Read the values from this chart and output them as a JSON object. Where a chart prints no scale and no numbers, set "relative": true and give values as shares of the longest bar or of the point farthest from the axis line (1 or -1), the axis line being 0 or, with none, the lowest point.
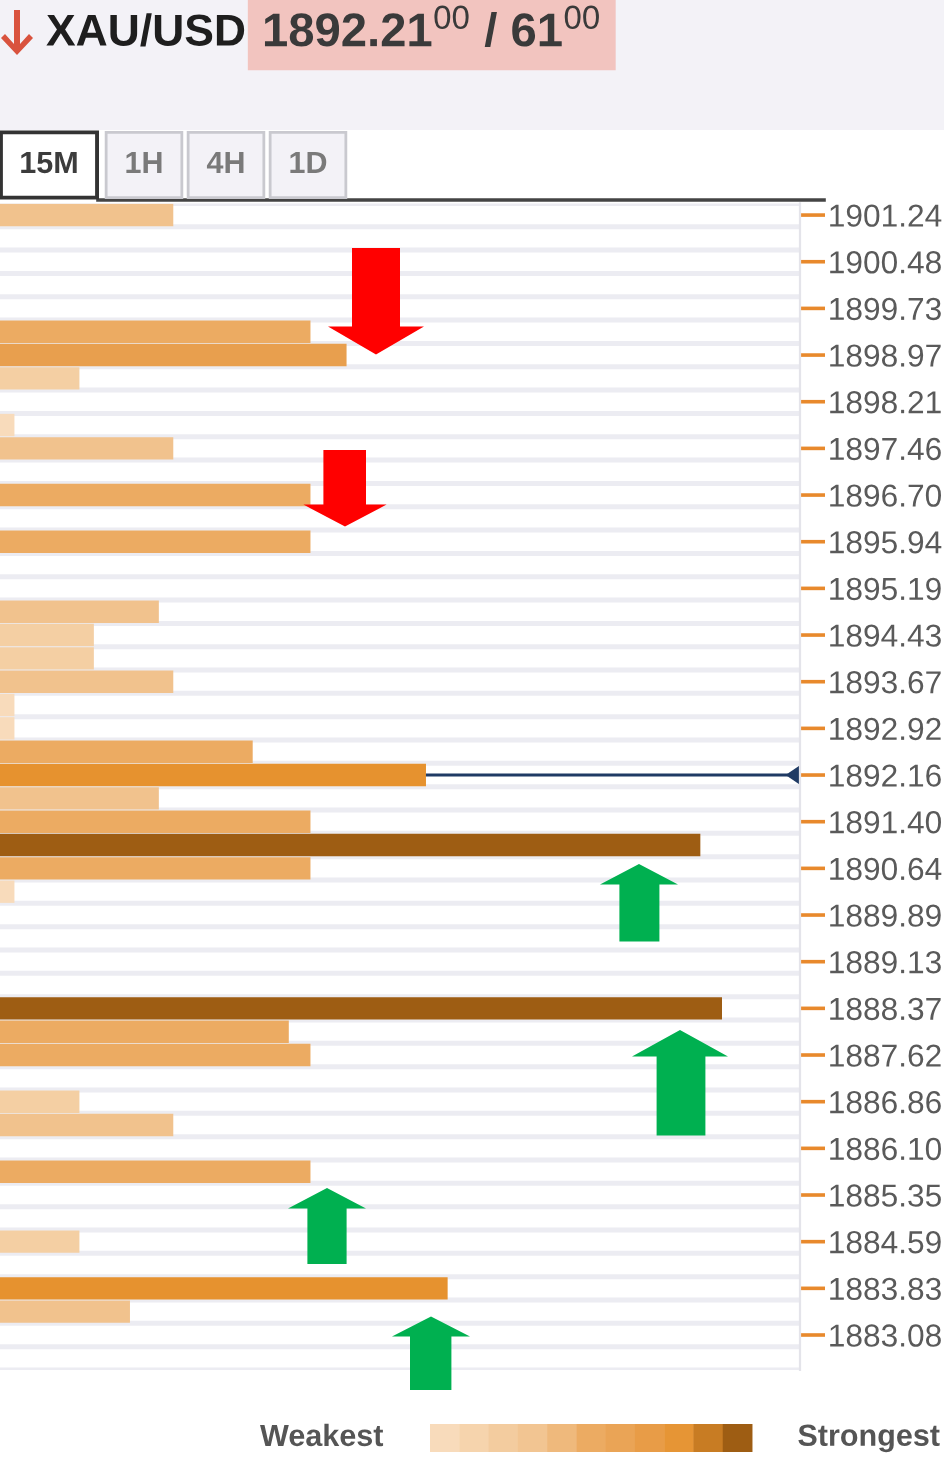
{
  "chart_data": {
    "type": "bar",
    "orientation": "horizontal",
    "relative": true,
    "title": "XAU/USD",
    "subtitle": "1892.21$^{00}$ / 61$^{00}$",
    "annotations": [
      "15M",
      "1H",
      "4H",
      "1D",
      "Weakest",
      "Strongest"
    ],
    "categories": [
      "1901.24",
      null,
      "1900.48",
      null,
      "1899.73",
      null,
      "1898.97",
      null,
      "1898.21",
      null,
      "1897.46",
      null,
      "1896.70",
      null,
      "1895.94",
      null,
      "1895.19",
      null,
      "1894.43",
      null,
      "1893.67",
      null,
      "1892.92",
      null,
      "1892.16",
      null,
      "1891.40",
      null,
      "1890.64",
      null,
      "1889.89",
      null,
      "1889.13",
      null,
      "1888.37",
      null,
      "1887.62",
      null,
      "1886.86",
      null,
      "1886.10",
      null,
      "1885.35",
      null,
      "1884.59",
      null,
      "1883.83",
      null,
      "1883.08",
      null
    ],
    "values": [
      0.24,
      null,
      null,
      null,
      null,
      0.43,
      0.48,
      0.11,
      null,
      0.02,
      0.24,
      null,
      0.43,
      null,
      0.43,
      null,
      null,
      0.22,
      0.13,
      0.13,
      0.24,
      0.02,
      0.02,
      0.35,
      0.59,
      0.22,
      0.43,
      0.97,
      0.43,
      0.02,
      null,
      null,
      null,
      null,
      1,
      0.4,
      0.43,
      null,
      0.11,
      0.24,
      null,
      0.43,
      null,
      null,
      0.11,
      null,
      0.62,
      0.18,
      null,
      null
    ],
    "colors": [
      "#f1c28d",
      null,
      null,
      null,
      null,
      "#ecab62",
      "#e89f4e",
      "#f4cfa3",
      null,
      "#f8dbbb",
      "#f1c28d",
      null,
      "#ecab62",
      null,
      "#ecab62",
      null,
      null,
      "#f1c28d",
      "#f4cfa3",
      "#f4cfa3",
      "#f1c28d",
      "#f8dbbb",
      "#f8dbbb",
      "#ecab62",
      "#e6922f",
      "#f1c28d",
      "#ecab62",
      "#9e5d13",
      "#ecab62",
      "#f8dbbb",
      null,
      null,
      null,
      null,
      "#9e5d13",
      "#ecab62",
      "#ecab62",
      null,
      "#f4cfa3",
      "#f1c28d",
      null,
      "#ecab62",
      null,
      null,
      "#f4cfa3",
      null,
      "#e6922f",
      "#f1c28d",
      null,
      null
    ],
    "ref_lines": [
      {
        "axis": "y",
        "value": "1892.16",
        "color": "#1f3a64"
      }
    ],
    "grid": "y"
  }
}
